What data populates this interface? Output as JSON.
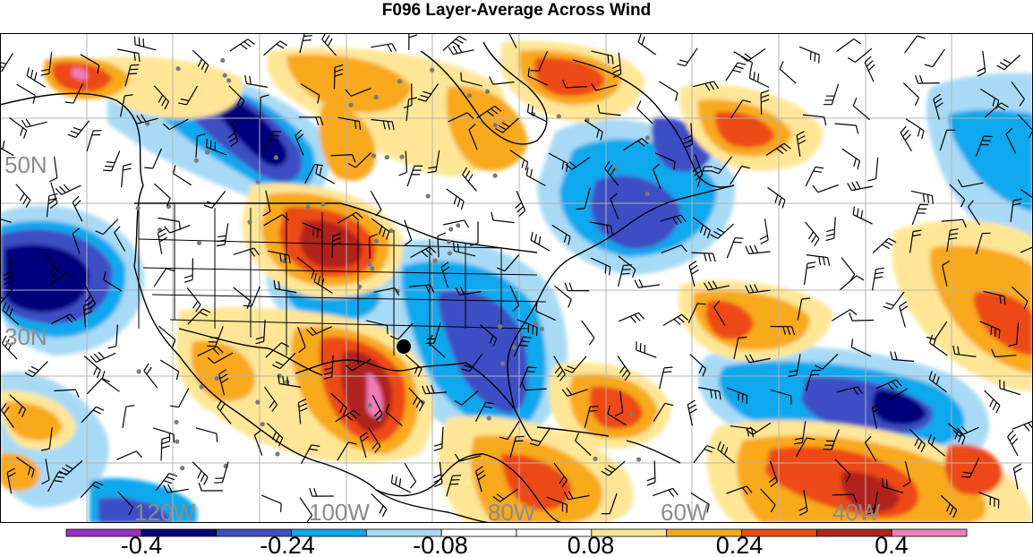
{
  "title": "F096 Layer-Average Across Wind",
  "colors": {
    "neg5": "#9b30c8",
    "neg4": "#00007d",
    "neg3": "#3e4ec4",
    "neg2": "#10a8ee",
    "neg1": "#a8daf6",
    "zero": "#ffffff",
    "pos1": "#ffe696",
    "pos2": "#f8a91e",
    "pos3": "#ed4a12",
    "pos4": "#b0241c",
    "pos5": "#f07cb8",
    "land_line": "#000000",
    "grid": "#b4b4b4",
    "station": "#7a7a7a",
    "storm_marker": "#000000"
  },
  "map": {
    "latitude_labels": [
      "50N",
      "30N"
    ],
    "longitude_labels": [
      "120W",
      "100W",
      "80W",
      "60W",
      "40W"
    ],
    "marker_icon": "storm-center-dot-icon"
  },
  "colorbar": {
    "tick_labels": [
      "-0.4",
      "-0.24",
      "-0.08",
      "0.08",
      "0.24",
      "0.4"
    ],
    "levels": [
      -0.48,
      -0.4,
      -0.32,
      -0.24,
      -0.16,
      -0.08,
      0.08,
      0.16,
      0.24,
      0.32,
      0.4,
      0.48
    ]
  }
}
